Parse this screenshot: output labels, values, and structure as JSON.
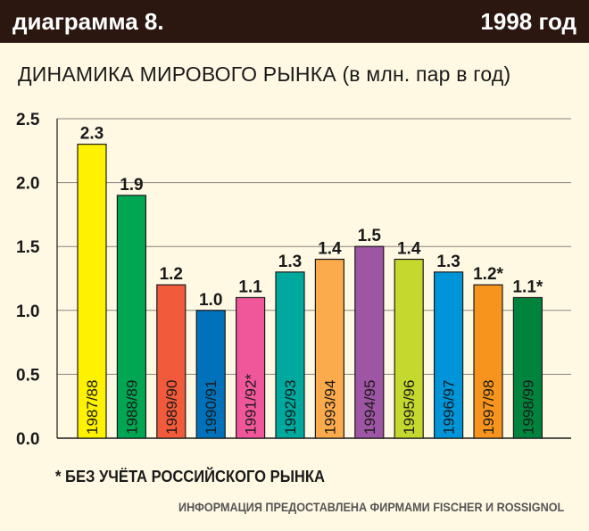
{
  "header": {
    "left": "диаграмма 8.",
    "right": "1998 год"
  },
  "subtitle": "ДИНАМИКА МИРОВОГО РЫНКА (в млн. пар в год)",
  "footnote": "* БЕЗ УЧЁТА РОССИЙСКОГО РЫНКА",
  "source": "ИНФОРМАЦИЯ ПРЕДОСТАВЛЕНА ФИРМАМИ FISCHER И ROSSIGNOL",
  "chart_data": {
    "type": "bar",
    "categories": [
      "1987/88",
      "1988/89",
      "1989/90",
      "1990/91",
      "1991/92*",
      "1992/93",
      "1993/94",
      "1994/95",
      "1995/96",
      "1996/97",
      "1997/98",
      "1998/99"
    ],
    "values": [
      2.3,
      1.9,
      1.2,
      1.0,
      1.1,
      1.3,
      1.4,
      1.5,
      1.4,
      1.3,
      1.2,
      1.1
    ],
    "value_labels": [
      "2.3",
      "1.9",
      "1.2",
      "1.0",
      "1.1",
      "1.3",
      "1.4",
      "1.5",
      "1.4",
      "1.3",
      "1.2*",
      "1.1*"
    ],
    "colors": [
      "#fff200",
      "#00a651",
      "#f15a3a",
      "#0072bc",
      "#f0569a",
      "#00a99d",
      "#fbaa4c",
      "#9e55a3",
      "#c4d82e",
      "#0095d9",
      "#f7941d",
      "#00843d"
    ],
    "yticks": [
      "0.0",
      "0.5",
      "1.0",
      "1.5",
      "2.0",
      "2.5"
    ],
    "ylim": [
      0,
      2.5
    ],
    "grid": true,
    "title": "",
    "xlabel": "",
    "ylabel": ""
  }
}
